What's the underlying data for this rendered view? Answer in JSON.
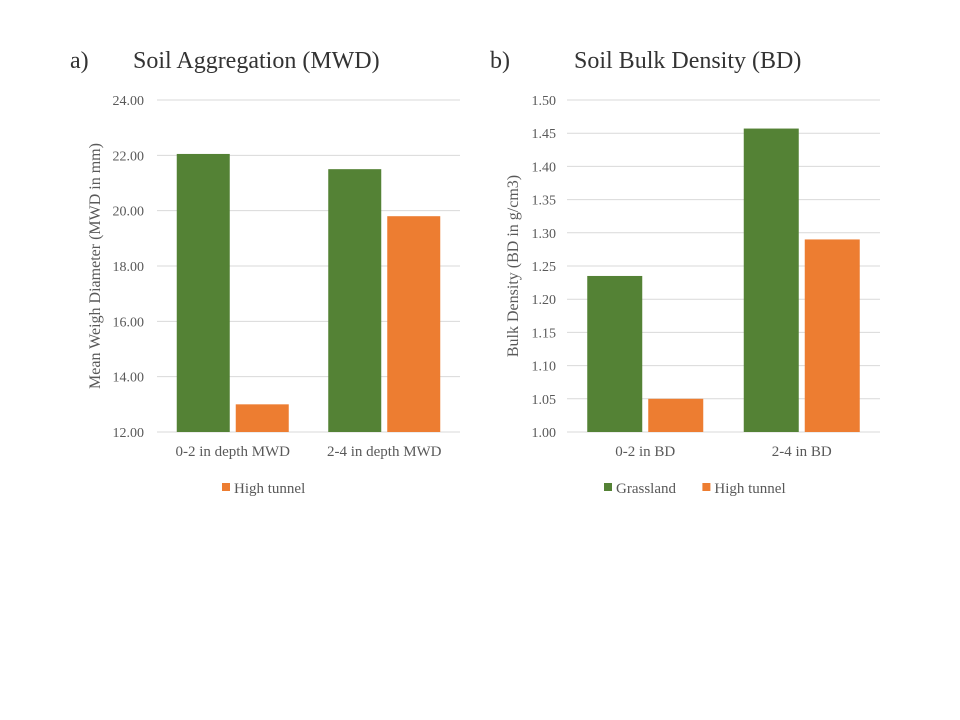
{
  "panels": {
    "a": {
      "letter": "a)",
      "title": "Soil Aggregation (MWD)"
    },
    "b": {
      "letter": "b)",
      "title": "Soil Bulk Density (BD)"
    }
  },
  "colors": {
    "grassland": "#548235",
    "high_tunnel": "#ED7D31",
    "grid": "#D9D9D9",
    "text": "#595959"
  },
  "chart_data": [
    {
      "type": "bar",
      "title": "Soil Aggregation (MWD)",
      "xlabel": "",
      "ylabel": "Mean Weigh Diameter (MWD in mm)",
      "categories": [
        "0-2 in depth MWD",
        "2-4 in depth MWD"
      ],
      "series": [
        {
          "name": "",
          "color": "#548235",
          "values": [
            22.05,
            21.5
          ]
        },
        {
          "name": "High tunnel",
          "color": "#ED7D31",
          "values": [
            13.0,
            19.8
          ]
        }
      ],
      "ylim": [
        12,
        24
      ],
      "yticks": [
        12,
        14,
        16,
        18,
        20,
        22,
        24
      ],
      "tick_decimals": 2,
      "grid": true,
      "legend_position": "bottom"
    },
    {
      "type": "bar",
      "title": "Soil Bulk Density (BD)",
      "xlabel": "",
      "ylabel": "Bulk Density (BD in g/cm3)",
      "categories": [
        "0-2 in BD",
        "2-4 in BD"
      ],
      "series": [
        {
          "name": "Grassland",
          "color": "#548235",
          "values": [
            1.235,
            1.457
          ]
        },
        {
          "name": "High tunnel",
          "color": "#ED7D31",
          "values": [
            1.05,
            1.29
          ]
        }
      ],
      "ylim": [
        1.0,
        1.5
      ],
      "yticks": [
        1.0,
        1.05,
        1.1,
        1.15,
        1.2,
        1.25,
        1.3,
        1.35,
        1.4,
        1.45,
        1.5
      ],
      "tick_decimals": 2,
      "grid": true,
      "legend_position": "bottom"
    }
  ]
}
